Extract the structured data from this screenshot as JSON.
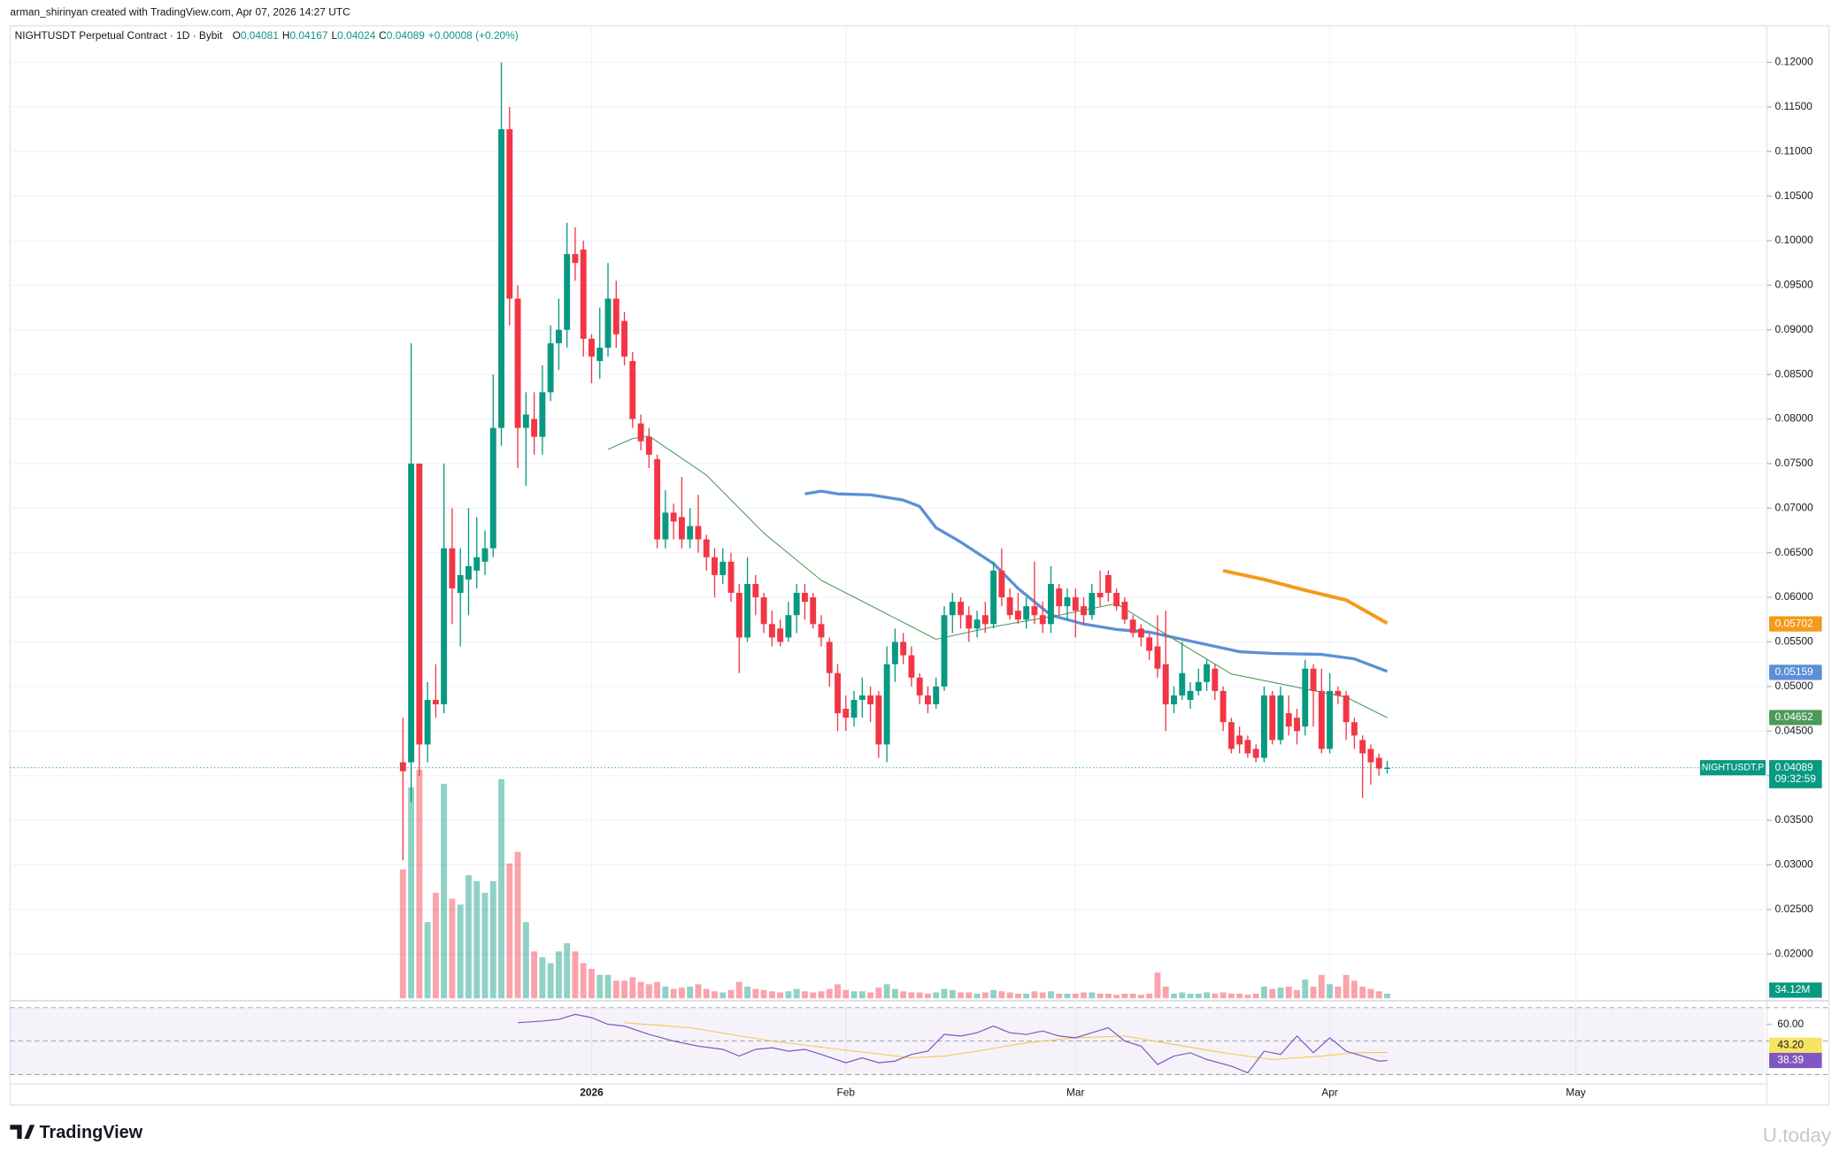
{
  "header": {
    "credit": "arman_shirinyan created with TradingView.com, Apr 07, 2026 14:27 UTC",
    "symbol": "NIGHTUSDT Perpetual Contract · 1D · Bybit",
    "ohlc": [
      {
        "key": "O",
        "value": "0.04081"
      },
      {
        "key": "H",
        "value": "0.04167"
      },
      {
        "key": "L",
        "value": "0.04024"
      },
      {
        "key": "C",
        "value": "0.04089"
      }
    ],
    "change": "+0.00008 (+0.20%)"
  },
  "chart_data": {
    "type": "candlestick",
    "up_color": "#089981",
    "down_color": "#f23645",
    "open": [
      0.0415,
      0.0415,
      0.075,
      0.0435,
      0.0485,
      0.048,
      0.0655,
      0.0605,
      0.062,
      0.063,
      0.064,
      0.0655,
      0.079,
      0.1125,
      0.0935,
      0.079,
      0.08,
      0.078,
      0.083,
      0.0885,
      0.09,
      0.0985,
      0.099,
      0.089,
      0.0865,
      0.088,
      0.0935,
      0.091,
      0.0865,
      0.0795,
      0.078,
      0.0755,
      0.0665,
      0.0695,
      0.069,
      0.0665,
      0.068,
      0.0665,
      0.0645,
      0.0625,
      0.064,
      0.0605,
      0.0555,
      0.0615,
      0.06,
      0.057,
      0.0565,
      0.0555,
      0.058,
      0.0605,
      0.06,
      0.057,
      0.055,
      0.0515,
      0.0475,
      0.0465,
      0.0485,
      0.049,
      0.049,
      0.0435,
      0.0525,
      0.055,
      0.0535,
      0.051,
      0.049,
      0.048,
      0.05,
      0.058,
      0.0595,
      0.058,
      0.0565,
      0.058,
      0.057,
      0.063,
      0.06,
      0.0585,
      0.0575,
      0.059,
      0.058,
      0.057,
      0.061,
      0.059,
      0.06,
      0.059,
      0.058,
      0.0605,
      0.0625,
      0.0605,
      0.0595,
      0.0575,
      0.0565,
      0.0555,
      0.0545,
      0.0525,
      0.048,
      0.049,
      0.0485,
      0.0495,
      0.0505,
      0.052,
      0.0495,
      0.046,
      0.0445,
      0.044,
      0.043,
      0.042,
      0.049,
      0.044,
      0.047,
      0.0465,
      0.0455,
      0.052,
      0.0495,
      0.043,
      0.0495,
      0.049,
      0.046,
      0.044,
      0.043,
      0.042,
      0.04081
    ],
    "high": [
      0.0465,
      0.0885,
      0.075,
      0.0505,
      0.0525,
      0.075,
      0.07,
      0.0655,
      0.07,
      0.069,
      0.0675,
      0.085,
      0.12,
      0.115,
      0.095,
      0.083,
      0.083,
      0.086,
      0.0905,
      0.0935,
      0.102,
      0.1015,
      0.1,
      0.0895,
      0.0925,
      0.0975,
      0.0955,
      0.092,
      0.0875,
      0.0805,
      0.079,
      0.076,
      0.072,
      0.0705,
      0.0735,
      0.07,
      0.0715,
      0.067,
      0.0655,
      0.0655,
      0.065,
      0.0615,
      0.0645,
      0.0625,
      0.0605,
      0.0585,
      0.0575,
      0.0595,
      0.0615,
      0.0615,
      0.0605,
      0.058,
      0.0555,
      0.0525,
      0.049,
      0.0495,
      0.051,
      0.05,
      0.0495,
      0.0545,
      0.0565,
      0.056,
      0.0545,
      0.0515,
      0.05,
      0.051,
      0.059,
      0.0605,
      0.06,
      0.059,
      0.0585,
      0.0595,
      0.064,
      0.0655,
      0.061,
      0.0605,
      0.06,
      0.064,
      0.0595,
      0.0635,
      0.0615,
      0.061,
      0.061,
      0.06,
      0.0615,
      0.063,
      0.063,
      0.061,
      0.06,
      0.058,
      0.057,
      0.056,
      0.058,
      0.0585,
      0.05,
      0.055,
      0.0505,
      0.052,
      0.053,
      0.0525,
      0.05,
      0.0465,
      0.0455,
      0.0445,
      0.0435,
      0.05,
      0.0495,
      0.05,
      0.049,
      0.0475,
      0.053,
      0.0525,
      0.052,
      0.0515,
      0.05,
      0.0495,
      0.0465,
      0.0445,
      0.0435,
      0.0425,
      0.04167
    ],
    "low": [
      0.0305,
      0.037,
      0.04,
      0.0415,
      0.0465,
      0.047,
      0.057,
      0.0545,
      0.058,
      0.061,
      0.0625,
      0.0645,
      0.077,
      0.0905,
      0.0745,
      0.0725,
      0.076,
      0.076,
      0.082,
      0.0855,
      0.088,
      0.0955,
      0.087,
      0.084,
      0.0845,
      0.087,
      0.088,
      0.086,
      0.079,
      0.0765,
      0.0745,
      0.0655,
      0.0655,
      0.0665,
      0.0655,
      0.0655,
      0.065,
      0.063,
      0.06,
      0.0615,
      0.0595,
      0.0515,
      0.055,
      0.058,
      0.056,
      0.0545,
      0.0545,
      0.055,
      0.056,
      0.0575,
      0.0565,
      0.0545,
      0.05,
      0.045,
      0.045,
      0.0455,
      0.0465,
      0.046,
      0.042,
      0.0415,
      0.0505,
      0.0525,
      0.05,
      0.048,
      0.047,
      0.0475,
      0.0495,
      0.056,
      0.0565,
      0.055,
      0.0555,
      0.056,
      0.0565,
      0.059,
      0.0575,
      0.057,
      0.0565,
      0.057,
      0.056,
      0.056,
      0.058,
      0.0575,
      0.0555,
      0.057,
      0.0575,
      0.059,
      0.0595,
      0.0585,
      0.057,
      0.0555,
      0.0545,
      0.053,
      0.051,
      0.045,
      0.047,
      0.0485,
      0.0475,
      0.049,
      0.0495,
      0.0485,
      0.045,
      0.0425,
      0.0425,
      0.042,
      0.0415,
      0.0415,
      0.0435,
      0.0435,
      0.0445,
      0.0435,
      0.0445,
      0.0455,
      0.0425,
      0.0425,
      0.048,
      0.044,
      0.043,
      0.0375,
      0.039,
      0.04,
      0.04024
    ],
    "close": [
      0.0405,
      0.075,
      0.0435,
      0.0485,
      0.048,
      0.0655,
      0.061,
      0.0625,
      0.0635,
      0.0645,
      0.0655,
      0.079,
      0.1125,
      0.0935,
      0.079,
      0.0805,
      0.078,
      0.083,
      0.0885,
      0.09,
      0.0985,
      0.0975,
      0.089,
      0.087,
      0.088,
      0.0935,
      0.0895,
      0.087,
      0.08,
      0.0775,
      0.076,
      0.0665,
      0.0695,
      0.0685,
      0.0665,
      0.068,
      0.0665,
      0.0645,
      0.0625,
      0.064,
      0.0605,
      0.0555,
      0.0615,
      0.06,
      0.057,
      0.0555,
      0.055,
      0.058,
      0.0605,
      0.0595,
      0.057,
      0.0555,
      0.0515,
      0.047,
      0.0465,
      0.0485,
      0.049,
      0.048,
      0.0435,
      0.0525,
      0.055,
      0.0535,
      0.051,
      0.049,
      0.048,
      0.05,
      0.058,
      0.0595,
      0.058,
      0.0565,
      0.0575,
      0.057,
      0.063,
      0.06,
      0.058,
      0.0575,
      0.059,
      0.058,
      0.057,
      0.0615,
      0.059,
      0.06,
      0.0585,
      0.058,
      0.0605,
      0.06,
      0.0605,
      0.059,
      0.0575,
      0.056,
      0.0555,
      0.054,
      0.052,
      0.048,
      0.049,
      0.0515,
      0.0495,
      0.0505,
      0.0525,
      0.0495,
      0.046,
      0.043,
      0.0435,
      0.0425,
      0.042,
      0.049,
      0.044,
      0.049,
      0.0455,
      0.045,
      0.052,
      0.0495,
      0.043,
      0.0495,
      0.049,
      0.046,
      0.0445,
      0.0425,
      0.0415,
      0.0408,
      0.04089
    ],
    "volume": [
      935,
      1530,
      1658,
      553,
      765,
      1556,
      723,
      680,
      893,
      850,
      765,
      850,
      1590,
      978,
      1063,
      553,
      340,
      298,
      255,
      340,
      400,
      340,
      255,
      213,
      170,
      170,
      128,
      128,
      153,
      119,
      102,
      119,
      85,
      68,
      77,
      85,
      102,
      68,
      51,
      43,
      60,
      119,
      85,
      68,
      60,
      51,
      43,
      51,
      68,
      51,
      43,
      51,
      68,
      102,
      60,
      51,
      51,
      43,
      77,
      102,
      68,
      51,
      43,
      43,
      34,
      43,
      68,
      60,
      43,
      43,
      34,
      43,
      60,
      51,
      43,
      34,
      34,
      51,
      43,
      51,
      34,
      34,
      34,
      43,
      43,
      34,
      34,
      26,
      34,
      34,
      26,
      34,
      187,
      85,
      34,
      43,
      34,
      34,
      43,
      34,
      43,
      34,
      34,
      26,
      34,
      85,
      68,
      77,
      85,
      60,
      136,
      85,
      170,
      102,
      85,
      170,
      128,
      85,
      68,
      51,
      34.12
    ],
    "volume_ylim": [
      0,
      1700
    ],
    "volume_last": {
      "value": 34.12,
      "label": "34.12M"
    },
    "xlim": [
      -47.9,
      166
    ],
    "xticks": [
      {
        "value": 23,
        "label": "2026"
      },
      {
        "value": 54,
        "label": "Feb"
      },
      {
        "value": 82,
        "label": "Mar"
      },
      {
        "value": 113,
        "label": "Apr"
      },
      {
        "value": 143,
        "label": "May"
      }
    ],
    "ylim": [
      0.0149,
      0.1241
    ],
    "yticks": [
      {
        "value": 0.02,
        "label": "0.02000"
      },
      {
        "value": 0.025,
        "label": "0.02500"
      },
      {
        "value": 0.03,
        "label": "0.03000"
      },
      {
        "value": 0.035,
        "label": "0.03500"
      },
      {
        "value": 0.04,
        "label": "0.04000"
      },
      {
        "value": 0.045,
        "label": "0.04500"
      },
      {
        "value": 0.05,
        "label": "0.05000"
      },
      {
        "value": 0.055,
        "label": "0.05500"
      },
      {
        "value": 0.06,
        "label": "0.06000"
      },
      {
        "value": 0.065,
        "label": "0.06500"
      },
      {
        "value": 0.07,
        "label": "0.07000"
      },
      {
        "value": 0.075,
        "label": "0.07500"
      },
      {
        "value": 0.08,
        "label": "0.08000"
      },
      {
        "value": 0.085,
        "label": "0.08500"
      },
      {
        "value": 0.09,
        "label": "0.09000"
      },
      {
        "value": 0.095,
        "label": "0.09500"
      },
      {
        "value": 0.1,
        "label": "0.10000"
      },
      {
        "value": 0.105,
        "label": "0.10500"
      },
      {
        "value": 0.11,
        "label": "0.11000"
      },
      {
        "value": 0.115,
        "label": "0.11500"
      },
      {
        "value": 0.12,
        "label": "0.12000"
      }
    ],
    "grid": true,
    "moving_averages": [
      {
        "color": "#f59a1c",
        "width": 3,
        "x": [
          100,
          105,
          110,
          115,
          120
        ],
        "values": [
          0.063,
          0.062,
          0.0608,
          0.0597,
          0.0571
        ],
        "last": {
          "value": 0.05702,
          "label": "0.05702"
        }
      },
      {
        "color": "#5b8fd6",
        "width": 2.5,
        "x": [
          49,
          51,
          53,
          57,
          61,
          63,
          65,
          68,
          72,
          75,
          79,
          83,
          87,
          91,
          95,
          99,
          102,
          106,
          112,
          116,
          120
        ],
        "values": [
          0.0716,
          0.0719,
          0.0716,
          0.0715,
          0.0709,
          0.0702,
          0.0678,
          0.0662,
          0.0638,
          0.061,
          0.058,
          0.057,
          0.0564,
          0.0561,
          0.0553,
          0.0545,
          0.0539,
          0.0537,
          0.0536,
          0.0531,
          0.0517
        ],
        "last": {
          "value": 0.05159,
          "label": "0.05159"
        }
      },
      {
        "color": "#4c9a5a",
        "width": 0.8,
        "x": [
          25,
          28,
          30,
          37,
          44,
          51,
          58,
          65,
          72,
          80,
          87,
          94,
          101,
          108,
          115,
          120
        ],
        "values": [
          0.0766,
          0.0778,
          0.0781,
          0.0737,
          0.0672,
          0.0619,
          0.0586,
          0.0553,
          0.0567,
          0.058,
          0.0593,
          0.0553,
          0.0514,
          0.0501,
          0.0488,
          0.0465
        ],
        "last": {
          "value": 0.04652,
          "label": "0.04652"
        }
      }
    ],
    "last_price": {
      "value": 0.04089,
      "label": "0.04089"
    },
    "symbol_tag": "NIGHTUSDT.P",
    "countdown": "09:32:59",
    "rsi": {
      "ylim": [
        24.4,
        73.5
      ],
      "bands": [
        70,
        50,
        30
      ],
      "ticks": [
        {
          "value": 60,
          "label": "60.00"
        }
      ],
      "color": "#7e57c2",
      "x": [
        14,
        17,
        19,
        21,
        23,
        25,
        27,
        30,
        33,
        36,
        39,
        41,
        43,
        45,
        47,
        49,
        51,
        54,
        56,
        58,
        60,
        62,
        64,
        66,
        68,
        70,
        72,
        74,
        76,
        78,
        80,
        82,
        84,
        86,
        88,
        90,
        92,
        94,
        96,
        98,
        101,
        103,
        105,
        107,
        109,
        111,
        113,
        115,
        117,
        119,
        120
      ],
      "values": [
        61,
        62,
        63,
        66,
        64,
        60,
        59,
        54,
        50,
        47,
        45,
        41,
        45,
        46,
        44,
        45,
        42,
        37,
        40,
        37,
        38,
        42,
        44,
        54,
        53,
        55,
        59,
        55,
        54,
        56,
        53,
        52,
        55,
        58,
        50,
        47,
        36,
        41,
        43,
        39,
        35,
        31,
        44,
        42,
        53,
        43,
        52,
        44,
        41,
        38,
        38.39
      ],
      "last": {
        "value": 38.39,
        "label": "38.39"
      },
      "signal": {
        "color": "#f2c94c",
        "x": [
          27,
          35,
          45,
          55,
          62,
          66,
          70,
          76,
          82,
          88,
          94,
          100,
          106,
          112,
          116,
          120
        ],
        "values": [
          61,
          58,
          50,
          44,
          40,
          41,
          44,
          49,
          52,
          53,
          48,
          43,
          39,
          41,
          43,
          43.2
        ],
        "last": {
          "value": 43.2,
          "label": "43.20"
        }
      }
    }
  },
  "footer": {
    "logo": "TradingView",
    "watermark": "U.today"
  }
}
